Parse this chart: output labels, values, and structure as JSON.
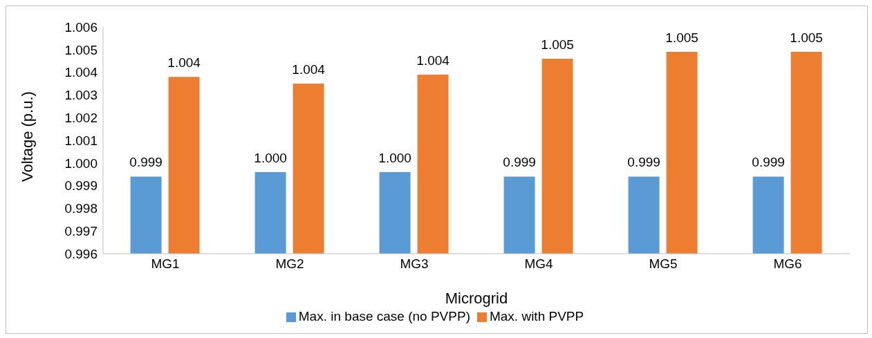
{
  "chart_data": {
    "type": "bar",
    "xlabel": "Microgrid",
    "ylabel": "Voltage (p.u.)",
    "categories": [
      "MG1",
      "MG2",
      "MG3",
      "MG4",
      "MG5",
      "MG6"
    ],
    "series": [
      {
        "name": "Max. in base case (no PVPP)",
        "color": "#5b9bd5",
        "values": [
          0.9994,
          0.9996,
          0.9996,
          0.9994,
          0.9994,
          0.9994
        ],
        "value_labels": [
          "0.999",
          "1.000",
          "1.000",
          "0.999",
          "0.999",
          "0.999"
        ]
      },
      {
        "name": "Max. with PVPP",
        "color": "#ed7d31",
        "values": [
          1.0038,
          1.0035,
          1.0039,
          1.0046,
          1.0049,
          1.0049
        ],
        "value_labels": [
          "1.004",
          "1.004",
          "1.004",
          "1.005",
          "1.005",
          "1.005"
        ]
      }
    ],
    "ylim": [
      0.996,
      1.006
    ],
    "yticks": [
      0.996,
      0.997,
      0.998,
      0.999,
      {
        "value": 1.0,
        "label": "1.000"
      },
      1.001,
      1.002,
      1.003,
      1.004,
      1.005,
      1.006
    ],
    "grid": false,
    "legend": "bottom"
  }
}
